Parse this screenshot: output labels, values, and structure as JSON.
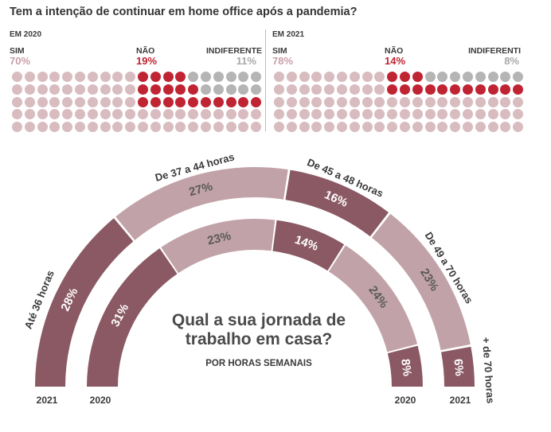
{
  "title": "Tem a intenção de continuar em home office após a pandemia?",
  "colors": {
    "sim": "#d8bcc0",
    "nao": "#c02433",
    "indiferente": "#b5b5b5",
    "arc_dark": "#8a5964",
    "arc_light": "#c1a2a8",
    "text_sim": "#c9a0a7",
    "text_nao": "#c02433",
    "text_indif": "#a8a8a8"
  },
  "home_office": [
    {
      "year_label": "EM 2020",
      "sim": {
        "label": "SIM",
        "pct": "70%"
      },
      "nao": {
        "label": "NÃO",
        "pct": "19%"
      },
      "indiferente": {
        "label": "INDIFERENTE",
        "pct": "11%"
      }
    },
    {
      "year_label": "EM 2021",
      "sim": {
        "label": "SIM",
        "pct": "78%"
      },
      "nao": {
        "label": "NÃO",
        "pct": "14%"
      },
      "indiferente": {
        "label": "INDIFERENTI",
        "pct": "8%"
      }
    }
  ],
  "jornada": {
    "title_line1": "Qual a sua jornada de",
    "title_line2": "trabalho em casa?",
    "subtitle": "POR HORAS SEMANAIS",
    "categories": [
      "Até 36 horas",
      "De 37 a 44 horas",
      "De 45 a 48 horas",
      "De 49 a 70 horas",
      "+ de 70 horas"
    ],
    "year_labels": {
      "outer": "2021",
      "inner": "2020"
    }
  },
  "chart_data": {
    "type": "pie",
    "title": "Qual a sua jornada de trabalho em casa?",
    "subtitle": "POR HORAS SEMANAIS",
    "categories": [
      "Até 36 horas",
      "De 37 a 44 horas",
      "De 45 a 48 horas",
      "De 49 a 70 horas",
      "+ de 70 horas"
    ],
    "series": [
      {
        "name": "2021",
        "values": [
          28,
          27,
          16,
          23,
          6
        ]
      },
      {
        "name": "2020",
        "values": [
          31,
          23,
          14,
          24,
          8
        ]
      }
    ]
  }
}
